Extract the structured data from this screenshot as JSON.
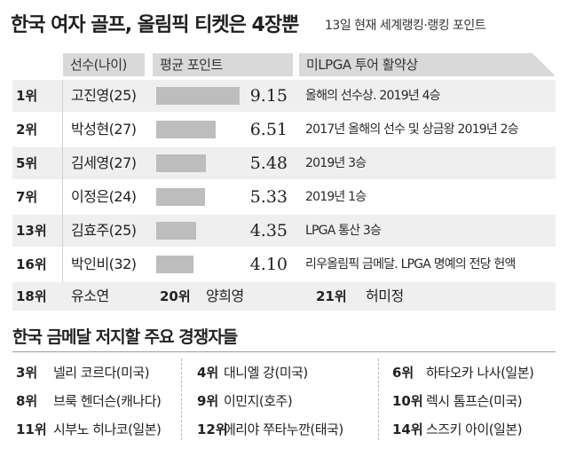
{
  "title": "한국 여자 골프, 올림픽 티켓은 4장뿐",
  "subtitle": "13일 현재 세계랭킹·랭킹 포인트",
  "headers": {
    "name": "선수(나이)",
    "points": "평균 포인트",
    "record": "미LPGA 투어 활약상"
  },
  "chart_data": {
    "type": "bar",
    "categories": [
      "고진영(25)",
      "박성현(27)",
      "김세영(27)",
      "이정은(24)",
      "김효주(25)",
      "박인비(32)"
    ],
    "values": [
      9.15,
      6.51,
      5.48,
      5.33,
      4.35,
      4.1
    ],
    "title": "한국 여자 골프, 올림픽 티켓은 4장뿐",
    "xlabel": "",
    "ylabel": "평균 포인트",
    "ylim": [
      0,
      9.15
    ]
  },
  "players": [
    {
      "rank": "1위",
      "name": "고진영(25)",
      "value": "9.15",
      "record": "올해의 선수상. 2019년 4승"
    },
    {
      "rank": "2위",
      "name": "박성현(27)",
      "value": "6.51",
      "record": "2017년 올해의 선수 및 상금왕 2019년 2승"
    },
    {
      "rank": "5위",
      "name": "김세영(27)",
      "value": "5.48",
      "record": "2019년 3승"
    },
    {
      "rank": "7위",
      "name": "이정은(24)",
      "value": "5.33",
      "record": "2019년 1승"
    },
    {
      "rank": "13위",
      "name": "김효주(25)",
      "value": "4.35",
      "record": "LPGA 통산 3승"
    },
    {
      "rank": "16위",
      "name": "박인비(32)",
      "value": "4.10",
      "record": "리우올림픽 금메달. LPGA 명예의 전당 헌액"
    }
  ],
  "extra": [
    {
      "rank": "18위",
      "name": "유소연"
    },
    {
      "rank": "20위",
      "name": "양희영"
    },
    {
      "rank": "21위",
      "name": "허미정"
    }
  ],
  "competitors_title": "한국 금메달 저지할 주요 경쟁자들",
  "competitors": [
    [
      {
        "rank": "3위",
        "name": "넬리 코르다(미국)"
      },
      {
        "rank": "4위",
        "name": "대니엘 강(미국)"
      },
      {
        "rank": "6위",
        "name": "하타오카 나사(일본)"
      }
    ],
    [
      {
        "rank": "8위",
        "name": "브룩 헨더슨(캐나다)"
      },
      {
        "rank": "9위",
        "name": "이민지(호주)"
      },
      {
        "rank": "10위",
        "name": "렉시 톰프슨(미국)"
      }
    ],
    [
      {
        "rank": "11위",
        "name": "시부노 히나코(일본)"
      },
      {
        "rank": "12위",
        "name": "에리야 쭈타누깐(태국)"
      },
      {
        "rank": "14위",
        "name": "스즈키 아이(일본)"
      }
    ]
  ],
  "colors": {
    "bar": "#bdbdbd",
    "header": "#d9d9d9",
    "row_shade": "#efefef"
  }
}
